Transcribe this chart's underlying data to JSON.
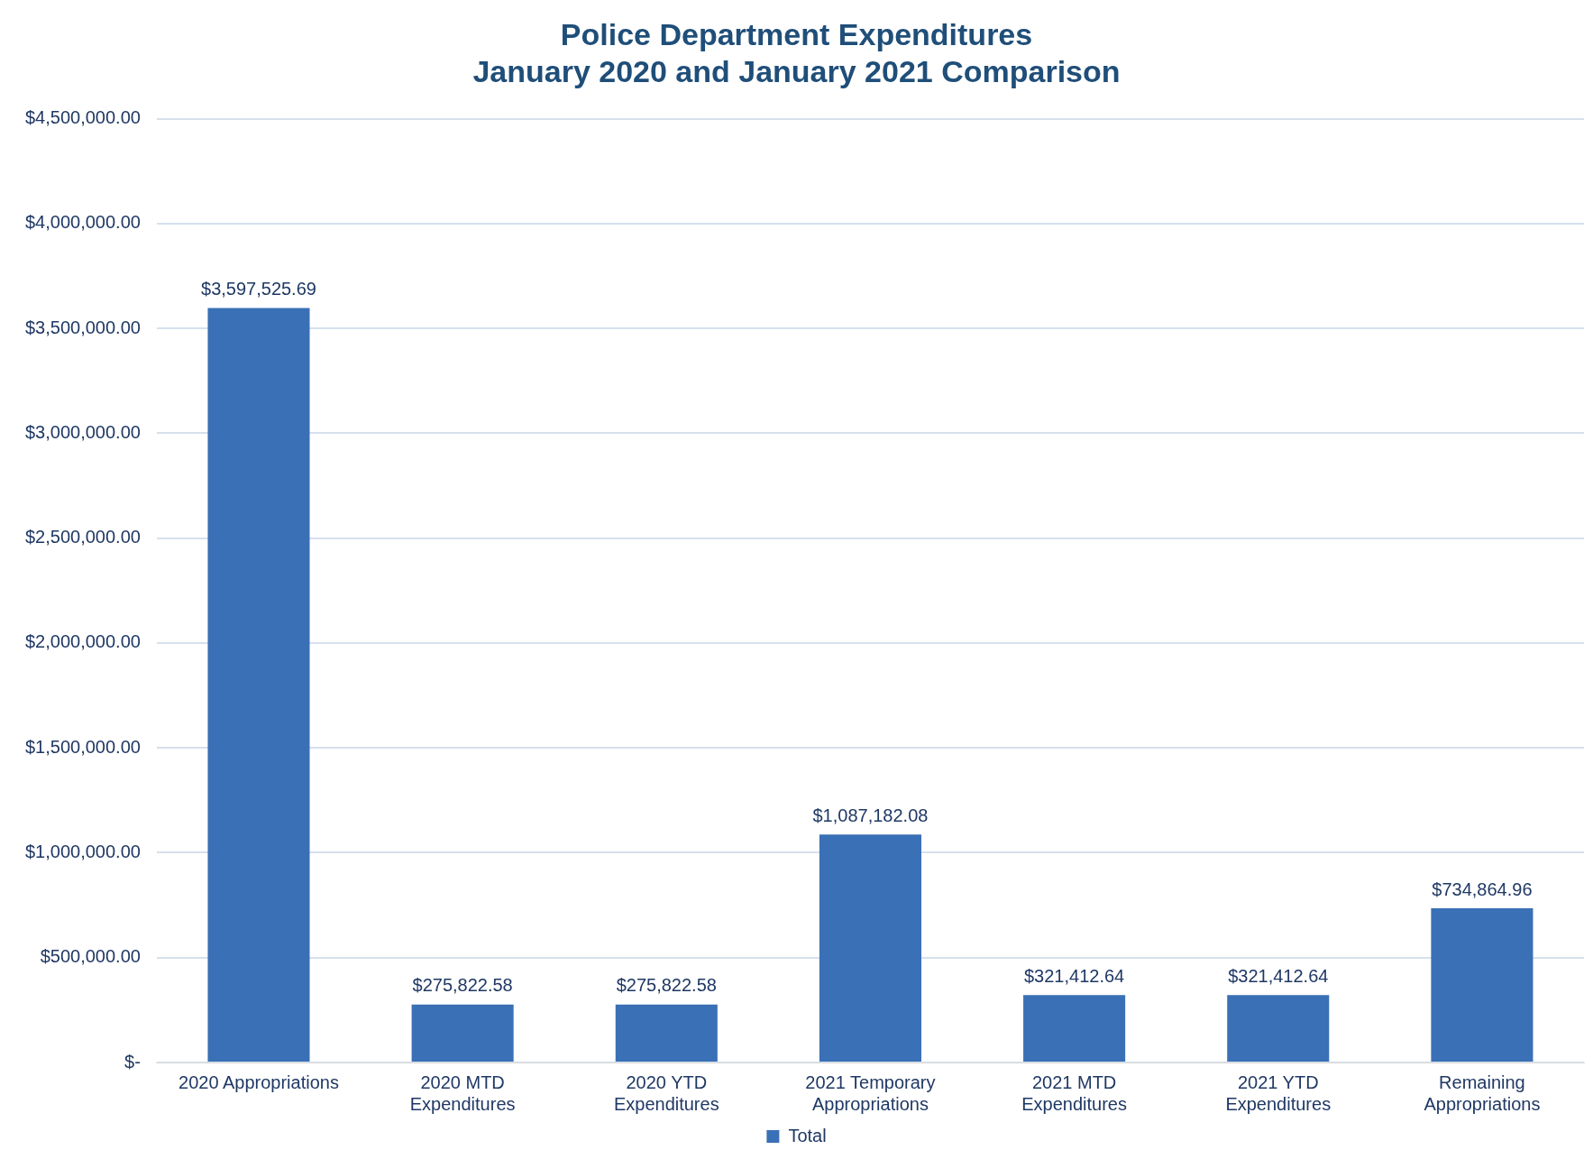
{
  "chart_data": {
    "type": "bar",
    "title": "Police Department Expenditures\nJanuary 2020 and January 2021 Comparison",
    "categories": [
      "2020 Appropriations",
      "2020 MTD Expenditures",
      "2020 YTD Expenditures",
      "2021 Temporary Appropriations",
      "2021 MTD Expenditures",
      "2021 YTD Expenditures",
      "Remaining Appropriations"
    ],
    "series": [
      {
        "name": "Total",
        "color": "#3a70b5",
        "values": [
          3597525.69,
          275822.58,
          275822.58,
          1087182.08,
          321412.64,
          321412.64,
          734864.96
        ],
        "value_labels": [
          "$3,597,525.69",
          "$275,822.58",
          "$275,822.58",
          "$1,087,182.08",
          "$321,412.64",
          "$321,412.64",
          "$734,864.96"
        ]
      }
    ],
    "ylim": [
      0,
      4500000
    ],
    "yticks": [
      {
        "value": 0,
        "label": "$-"
      },
      {
        "value": 500000,
        "label": "$500,000.00"
      },
      {
        "value": 1000000,
        "label": "$1,000,000.00"
      },
      {
        "value": 1500000,
        "label": "$1,500,000.00"
      },
      {
        "value": 2000000,
        "label": "$2,000,000.00"
      },
      {
        "value": 2500000,
        "label": "$2,500,000.00"
      },
      {
        "value": 3000000,
        "label": "$3,000,000.00"
      },
      {
        "value": 3500000,
        "label": "$3,500,000.00"
      },
      {
        "value": 4000000,
        "label": "$4,000,000.00"
      },
      {
        "value": 4500000,
        "label": "$4,500,000.00"
      }
    ],
    "grid": "y",
    "legend": "bottom"
  }
}
